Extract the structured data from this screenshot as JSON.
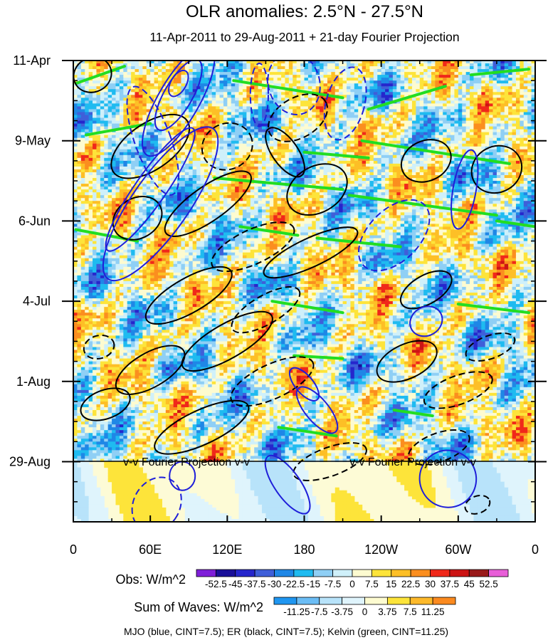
{
  "chart_data": {
    "type": "heatmap",
    "title": "OLR anomalies: 2.5°N - 27.5°N",
    "subtitle": "11-Apr-2011 to 29-Aug-2011 + 21-day Fourier Projection",
    "x_ticks": [
      "0",
      "60E",
      "120E",
      "180",
      "120W",
      "60W",
      "0"
    ],
    "x_tick_lon": [
      0,
      60,
      120,
      180,
      240,
      300,
      360
    ],
    "y_ticks": [
      "11-Apr",
      "9-May",
      "6-Jun",
      "4-Jul",
      "1-Aug",
      "29-Aug"
    ],
    "y_tick_day": [
      0,
      28,
      56,
      84,
      112,
      140
    ],
    "xlim": [
      0,
      360
    ],
    "ylim_days": [
      0,
      161
    ],
    "projection_label": "v-v Fourier Projection v-v",
    "projection_start": "29-Aug",
    "obs_colorbar": {
      "label": "Obs: W/m^2",
      "levels": [
        "-52.5",
        "-45",
        "-37.5",
        "-30",
        "-22.5",
        "-15",
        "-7.5",
        "0",
        "7.5",
        "15",
        "22.5",
        "30",
        "37.5",
        "45",
        "52.5"
      ],
      "colors": [
        "#7f1fd9",
        "#1a0f99",
        "#2626cc",
        "#3f5fd9",
        "#1f87e6",
        "#1fbbf0",
        "#8fcff5",
        "#cff0fa",
        "#fdfbd0",
        "#fde43a",
        "#fdbf26",
        "#fb8e1f",
        "#f0281a",
        "#cc1414",
        "#991a1a",
        "#e85fd8"
      ]
    },
    "waves_colorbar": {
      "label": "Sum of Waves: W/m^2",
      "levels": [
        "-11.25",
        "-7.5",
        "-3.75",
        "0",
        "3.75",
        "7.5",
        "11.25"
      ],
      "colors": [
        "#1f96f0",
        "#6bbdf5",
        "#b8e3fa",
        "#dff4fc",
        "#fdfbd0",
        "#fde43a",
        "#fdb92a",
        "#fb8a1f"
      ]
    },
    "footer": "MJO (blue, CINT=7.5); ER (black, CINT=7.5); Kelvin (green, CINT=11.25)",
    "wave_colors": {
      "MJO": "#1f1fd9",
      "ER": "#000000",
      "Kelvin": "#22dd22"
    },
    "mjo_contours": [
      {
        "lon": 82,
        "day": 8,
        "rlon": 6,
        "rday": 5,
        "angle": 30,
        "dashed": false
      },
      {
        "lon": 82,
        "day": 12,
        "rlon": 11,
        "rday": 14,
        "angle": 30,
        "dashed": false
      },
      {
        "lon": 82,
        "day": 14,
        "rlon": 16,
        "rday": 22,
        "angle": 30,
        "dashed": false
      },
      {
        "lon": 62,
        "day": 28,
        "rlon": 14,
        "rday": 20,
        "angle": -20,
        "dashed": true
      },
      {
        "lon": 60,
        "day": 45,
        "rlon": 12,
        "rday": 26,
        "angle": 35,
        "dashed": false
      },
      {
        "lon": 68,
        "day": 50,
        "rlon": 22,
        "rday": 32,
        "angle": 35,
        "dashed": false
      },
      {
        "lon": 145,
        "day": 12,
        "rlon": 7,
        "rday": 11,
        "angle": 0,
        "dashed": true
      },
      {
        "lon": 172,
        "day": 8,
        "rlon": 20,
        "rday": 11,
        "angle": -15,
        "dashed": true
      },
      {
        "lon": 212,
        "day": 15,
        "rlon": 15,
        "rday": 13,
        "angle": 15,
        "dashed": true
      },
      {
        "lon": 250,
        "day": 61,
        "rlon": 20,
        "rday": 15,
        "angle": 45,
        "dashed": true
      },
      {
        "lon": 305,
        "day": 45,
        "rlon": 9,
        "rday": 14,
        "angle": 10,
        "dashed": false
      },
      {
        "lon": 275,
        "day": 91,
        "rlon": 13,
        "rday": 5,
        "angle": -30,
        "dashed": false
      },
      {
        "lon": 190,
        "day": 122,
        "rlon": 9,
        "rday": 10,
        "angle": -40,
        "dashed": false
      },
      {
        "lon": 180,
        "day": 113,
        "rlon": 7,
        "rday": 7,
        "angle": -40,
        "dashed": false
      },
      {
        "lon": 167,
        "day": 148,
        "rlon": 10,
        "rday": 12,
        "angle": -35,
        "dashed": false
      },
      {
        "lon": 292,
        "day": 146,
        "rlon": 22,
        "rday": 10,
        "angle": -25,
        "dashed": false
      },
      {
        "lon": 65,
        "day": 155,
        "rlon": 18,
        "rday": 10,
        "angle": 30,
        "dashed": true
      },
      {
        "lon": 85,
        "day": 145,
        "rlon": 10,
        "rday": 5,
        "angle": 0,
        "dashed": false
      }
    ],
    "er_contours": [
      {
        "lon": 15,
        "day": 5,
        "rlon": 15,
        "rday": 6,
        "angle": -25,
        "dashed": false
      },
      {
        "lon": 60,
        "day": 30,
        "rlon": 35,
        "rday": 8,
        "angle": -35,
        "dashed": false
      },
      {
        "lon": 105,
        "day": 50,
        "rlon": 40,
        "rday": 6,
        "angle": -35,
        "dashed": false
      },
      {
        "lon": 50,
        "day": 55,
        "rlon": 20,
        "rday": 7,
        "angle": -30,
        "dashed": false
      },
      {
        "lon": 120,
        "day": 30,
        "rlon": 20,
        "rday": 8,
        "angle": -25,
        "dashed": true
      },
      {
        "lon": 175,
        "day": 20,
        "rlon": 25,
        "rday": 7,
        "angle": -30,
        "dashed": true
      },
      {
        "lon": 165,
        "day": 32,
        "rlon": 10,
        "rday": 10,
        "angle": -35,
        "dashed": false
      },
      {
        "lon": 190,
        "day": 45,
        "rlon": 25,
        "rday": 8,
        "angle": -30,
        "dashed": false
      },
      {
        "lon": 275,
        "day": 35,
        "rlon": 20,
        "rday": 7,
        "angle": -25,
        "dashed": false
      },
      {
        "lon": 330,
        "day": 38,
        "rlon": 20,
        "rday": 8,
        "angle": -30,
        "dashed": false
      },
      {
        "lon": 140,
        "day": 65,
        "rlon": 35,
        "rday": 6,
        "angle": -25,
        "dashed": true
      },
      {
        "lon": 185,
        "day": 67,
        "rlon": 40,
        "rday": 5,
        "angle": -25,
        "dashed": false
      },
      {
        "lon": 90,
        "day": 82,
        "rlon": 38,
        "rday": 6,
        "angle": -30,
        "dashed": false
      },
      {
        "lon": 150,
        "day": 87,
        "rlon": 30,
        "rday": 5,
        "angle": -30,
        "dashed": true
      },
      {
        "lon": 120,
        "day": 98,
        "rlon": 40,
        "rday": 6,
        "angle": -30,
        "dashed": false
      },
      {
        "lon": 60,
        "day": 108,
        "rlon": 30,
        "rday": 6,
        "angle": -30,
        "dashed": false
      },
      {
        "lon": 155,
        "day": 112,
        "rlon": 35,
        "rday": 6,
        "angle": -25,
        "dashed": true
      },
      {
        "lon": 100,
        "day": 128,
        "rlon": 40,
        "rday": 6,
        "angle": -25,
        "dashed": false
      },
      {
        "lon": 260,
        "day": 105,
        "rlon": 25,
        "rday": 6,
        "angle": -25,
        "dashed": false
      },
      {
        "lon": 300,
        "day": 115,
        "rlon": 28,
        "rday": 5,
        "angle": -20,
        "dashed": true
      },
      {
        "lon": 275,
        "day": 80,
        "rlon": 22,
        "rday": 5,
        "angle": -30,
        "dashed": false
      },
      {
        "lon": 325,
        "day": 100,
        "rlon": 20,
        "rday": 4,
        "angle": -20,
        "dashed": true
      },
      {
        "lon": 200,
        "day": 140,
        "rlon": 30,
        "rday": 5,
        "angle": -20,
        "dashed": true
      },
      {
        "lon": 25,
        "day": 120,
        "rlon": 20,
        "rday": 5,
        "angle": -20,
        "dashed": false
      },
      {
        "lon": 20,
        "day": 100,
        "rlon": 12,
        "rday": 4,
        "angle": -15,
        "dashed": true
      },
      {
        "lon": 285,
        "day": 135,
        "rlon": 25,
        "rday": 5,
        "angle": -20,
        "dashed": true
      },
      {
        "lon": 315,
        "day": 155,
        "rlon": 10,
        "rday": 3,
        "angle": -20,
        "dashed": true
      }
    ],
    "kelvin_segments": [
      {
        "lon1": 2,
        "day1": 8,
        "lon2": 40,
        "day2": 2
      },
      {
        "lon1": 125,
        "day1": 7,
        "lon2": 210,
        "day2": 13
      },
      {
        "lon1": 230,
        "day1": 17,
        "lon2": 290,
        "day2": 9
      },
      {
        "lon1": 310,
        "day1": 5,
        "lon2": 355,
        "day2": 3
      },
      {
        "lon1": 10,
        "day1": 26,
        "lon2": 60,
        "day2": 22
      },
      {
        "lon1": 225,
        "day1": 28,
        "lon2": 340,
        "day2": 36
      },
      {
        "lon1": 180,
        "day1": 32,
        "lon2": 230,
        "day2": 34
      },
      {
        "lon1": 110,
        "day1": 41,
        "lon2": 210,
        "day2": 45
      },
      {
        "lon1": 215,
        "day1": 47,
        "lon2": 330,
        "day2": 54
      },
      {
        "lon1": 2,
        "day1": 59,
        "lon2": 50,
        "day2": 63
      },
      {
        "lon1": 130,
        "day1": 58,
        "lon2": 175,
        "day2": 61
      },
      {
        "lon1": 190,
        "day1": 62,
        "lon2": 255,
        "day2": 65
      },
      {
        "lon1": 330,
        "day1": 56,
        "lon2": 360,
        "day2": 58
      },
      {
        "lon1": 155,
        "day1": 84,
        "lon2": 210,
        "day2": 88
      },
      {
        "lon1": 300,
        "day1": 85,
        "lon2": 355,
        "day2": 88
      },
      {
        "lon1": 172,
        "day1": 103,
        "lon2": 210,
        "day2": 104
      },
      {
        "lon1": 160,
        "day1": 128,
        "lon2": 205,
        "day2": 131
      },
      {
        "lon1": 250,
        "day1": 122,
        "lon2": 280,
        "day2": 124
      }
    ]
  }
}
